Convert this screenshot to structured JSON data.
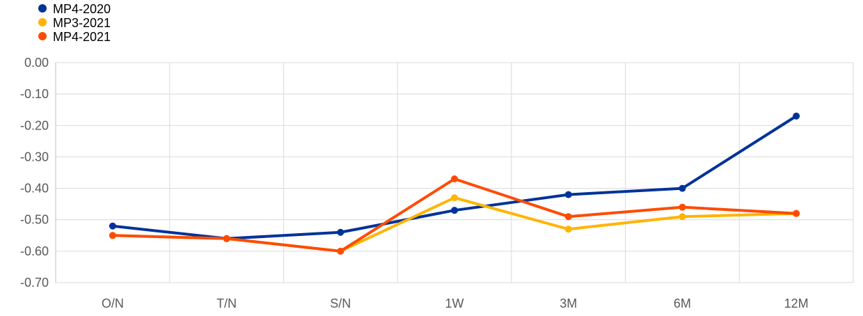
{
  "chart_data": {
    "type": "line",
    "title": "",
    "xlabel": "",
    "ylabel": "",
    "categories": [
      "O/N",
      "T/N",
      "S/N",
      "1W",
      "3M",
      "6M",
      "12M"
    ],
    "ylim": [
      -0.7,
      0.0
    ],
    "yticks": [
      "0.00",
      "-0.10",
      "-0.20",
      "-0.30",
      "-0.40",
      "-0.50",
      "-0.60",
      "-0.70"
    ],
    "ytick_values": [
      0.0,
      -0.1,
      -0.2,
      -0.3,
      -0.4,
      -0.5,
      -0.6,
      -0.7
    ],
    "grid": true,
    "legend_position": "top-left",
    "series": [
      {
        "name": "MP4-2020",
        "color": "#003299",
        "values": [
          -0.52,
          -0.56,
          -0.54,
          -0.47,
          -0.42,
          -0.4,
          -0.17
        ]
      },
      {
        "name": "MP3-2021",
        "color": "#FFB400",
        "values": [
          -0.55,
          -0.56,
          -0.6,
          -0.43,
          -0.53,
          -0.49,
          -0.48
        ]
      },
      {
        "name": "MP4-2021",
        "color": "#FF4B00",
        "values": [
          -0.55,
          -0.56,
          -0.6,
          -0.37,
          -0.49,
          -0.46,
          -0.48
        ]
      }
    ]
  }
}
